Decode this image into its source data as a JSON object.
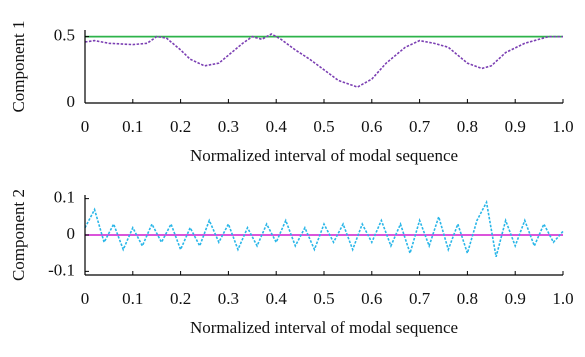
{
  "chart_data": [
    {
      "type": "line",
      "xlabel": "Normalized interval of modal sequence",
      "ylabel": "Component 1",
      "x": [
        0,
        0.02,
        0.05,
        0.1,
        0.13,
        0.15,
        0.17,
        0.2,
        0.22,
        0.25,
        0.28,
        0.3,
        0.33,
        0.35,
        0.37,
        0.39,
        0.41,
        0.44,
        0.47,
        0.5,
        0.53,
        0.57,
        0.6,
        0.63,
        0.67,
        0.7,
        0.73,
        0.76,
        0.8,
        0.83,
        0.85,
        0.88,
        0.92,
        0.95,
        0.97,
        1.0
      ],
      "series": [
        {
          "color": "#2db34a",
          "linestyle": "solid",
          "values": [
            0.5,
            0.5,
            0.5,
            0.5,
            0.5,
            0.5,
            0.5,
            0.5,
            0.5,
            0.5,
            0.5,
            0.5,
            0.5,
            0.5,
            0.5,
            0.5,
            0.5,
            0.5,
            0.5,
            0.5,
            0.5,
            0.5,
            0.5,
            0.5,
            0.5,
            0.5,
            0.5,
            0.5,
            0.5,
            0.5,
            0.5,
            0.5,
            0.5,
            0.5,
            0.5,
            0.5
          ]
        },
        {
          "color": "#7b3fb3",
          "linestyle": "dotted",
          "values": [
            0.46,
            0.47,
            0.45,
            0.44,
            0.45,
            0.5,
            0.49,
            0.4,
            0.33,
            0.28,
            0.3,
            0.36,
            0.45,
            0.5,
            0.48,
            0.52,
            0.48,
            0.4,
            0.33,
            0.25,
            0.17,
            0.12,
            0.18,
            0.3,
            0.42,
            0.47,
            0.45,
            0.42,
            0.3,
            0.26,
            0.28,
            0.38,
            0.45,
            0.48,
            0.5,
            0.5
          ]
        }
      ],
      "xlim": [
        0,
        1
      ],
      "xticks": [
        0,
        0.1,
        0.2,
        0.3,
        0.4,
        0.5,
        0.6,
        0.7,
        0.8,
        0.9,
        {
          "value": 1,
          "label": "1.0"
        }
      ],
      "ylim": [
        0,
        0.55
      ],
      "yticks": [
        0,
        0.5
      ]
    },
    {
      "type": "line",
      "xlabel": "Normalized interval of modal sequence",
      "ylabel": "Component 2",
      "x": [
        0,
        0.02,
        0.04,
        0.06,
        0.08,
        0.1,
        0.12,
        0.14,
        0.16,
        0.18,
        0.2,
        0.22,
        0.24,
        0.26,
        0.28,
        0.3,
        0.32,
        0.34,
        0.36,
        0.38,
        0.4,
        0.42,
        0.44,
        0.46,
        0.48,
        0.5,
        0.52,
        0.54,
        0.56,
        0.58,
        0.6,
        0.62,
        0.64,
        0.66,
        0.68,
        0.7,
        0.72,
        0.74,
        0.76,
        0.78,
        0.8,
        0.82,
        0.84,
        0.86,
        0.88,
        0.9,
        0.92,
        0.94,
        0.96,
        0.98,
        1.0
      ],
      "series": [
        {
          "color": "#d63bd6",
          "linestyle": "solid",
          "values": [
            0,
            0,
            0,
            0,
            0,
            0,
            0,
            0,
            0,
            0,
            0,
            0,
            0,
            0,
            0,
            0,
            0,
            0,
            0,
            0,
            0,
            0,
            0,
            0,
            0,
            0,
            0,
            0,
            0,
            0,
            0,
            0,
            0,
            0,
            0,
            0,
            0,
            0,
            0,
            0,
            0,
            0,
            0,
            0,
            0,
            0,
            0,
            0,
            0,
            0,
            0
          ]
        },
        {
          "color": "#29b6e8",
          "linestyle": "dotted",
          "values": [
            0.02,
            0.07,
            -0.02,
            0.03,
            -0.04,
            0.02,
            -0.03,
            0.03,
            -0.02,
            0.03,
            -0.04,
            0.02,
            -0.03,
            0.04,
            -0.02,
            0.03,
            -0.04,
            0.02,
            -0.03,
            0.03,
            -0.02,
            0.04,
            -0.03,
            0.02,
            -0.04,
            0.03,
            -0.02,
            0.03,
            -0.04,
            0.03,
            -0.02,
            0.04,
            -0.03,
            0.03,
            -0.05,
            0.04,
            -0.03,
            0.05,
            -0.04,
            0.03,
            -0.05,
            0.04,
            0.09,
            -0.06,
            0.04,
            -0.03,
            0.04,
            -0.03,
            0.03,
            -0.02,
            0.01
          ]
        }
      ],
      "xlim": [
        0,
        1
      ],
      "xticks": [
        0,
        0.1,
        0.2,
        0.3,
        0.4,
        0.5,
        0.6,
        0.7,
        0.8,
        0.9,
        {
          "value": 1,
          "label": "1.0"
        }
      ],
      "ylim": [
        -0.11,
        0.11
      ],
      "yticks": [
        -0.1,
        0,
        0.1
      ]
    }
  ]
}
